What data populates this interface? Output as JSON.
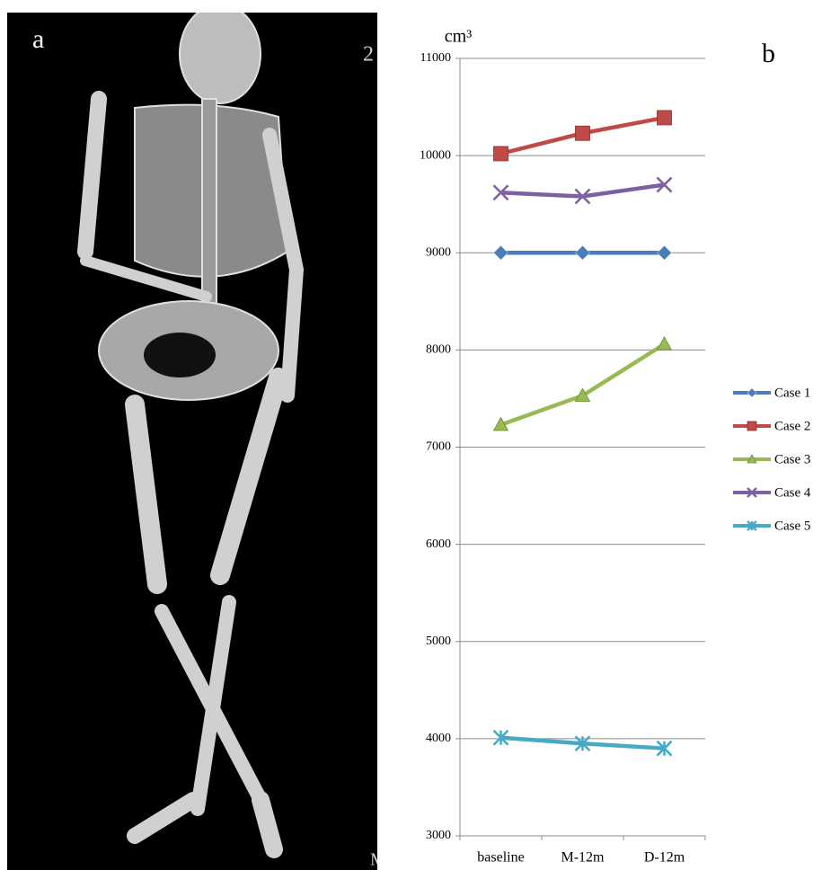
{
  "panel_labels": [
    "a",
    "b"
  ],
  "image_marks": [
    "2",
    "M"
  ],
  "chart_data": {
    "type": "line",
    "y_label": "cm³",
    "categories": [
      "baseline",
      "M-12m",
      "D-12m"
    ],
    "series": [
      {
        "name": "Case 1",
        "color": "#4a7ebb",
        "marker": "diamond",
        "values": [
          9000,
          9000,
          9000
        ]
      },
      {
        "name": "Case 2",
        "color": "#be4b48",
        "marker": "square",
        "values": [
          10020,
          10230,
          10390
        ]
      },
      {
        "name": "Case 3",
        "color": "#98b954",
        "marker": "triangle",
        "values": [
          7230,
          7530,
          8060
        ]
      },
      {
        "name": "Case 4",
        "color": "#7d60a0",
        "marker": "x",
        "values": [
          9620,
          9580,
          9700
        ]
      },
      {
        "name": "Case 5",
        "color": "#46aac5",
        "marker": "star",
        "values": [
          4010,
          3950,
          3900
        ]
      }
    ],
    "ylim": [
      3000,
      11000
    ],
    "yticks": [
      3000,
      4000,
      5000,
      6000,
      7000,
      8000,
      9000,
      10000,
      11000
    ],
    "grid": true,
    "legend": "right"
  }
}
